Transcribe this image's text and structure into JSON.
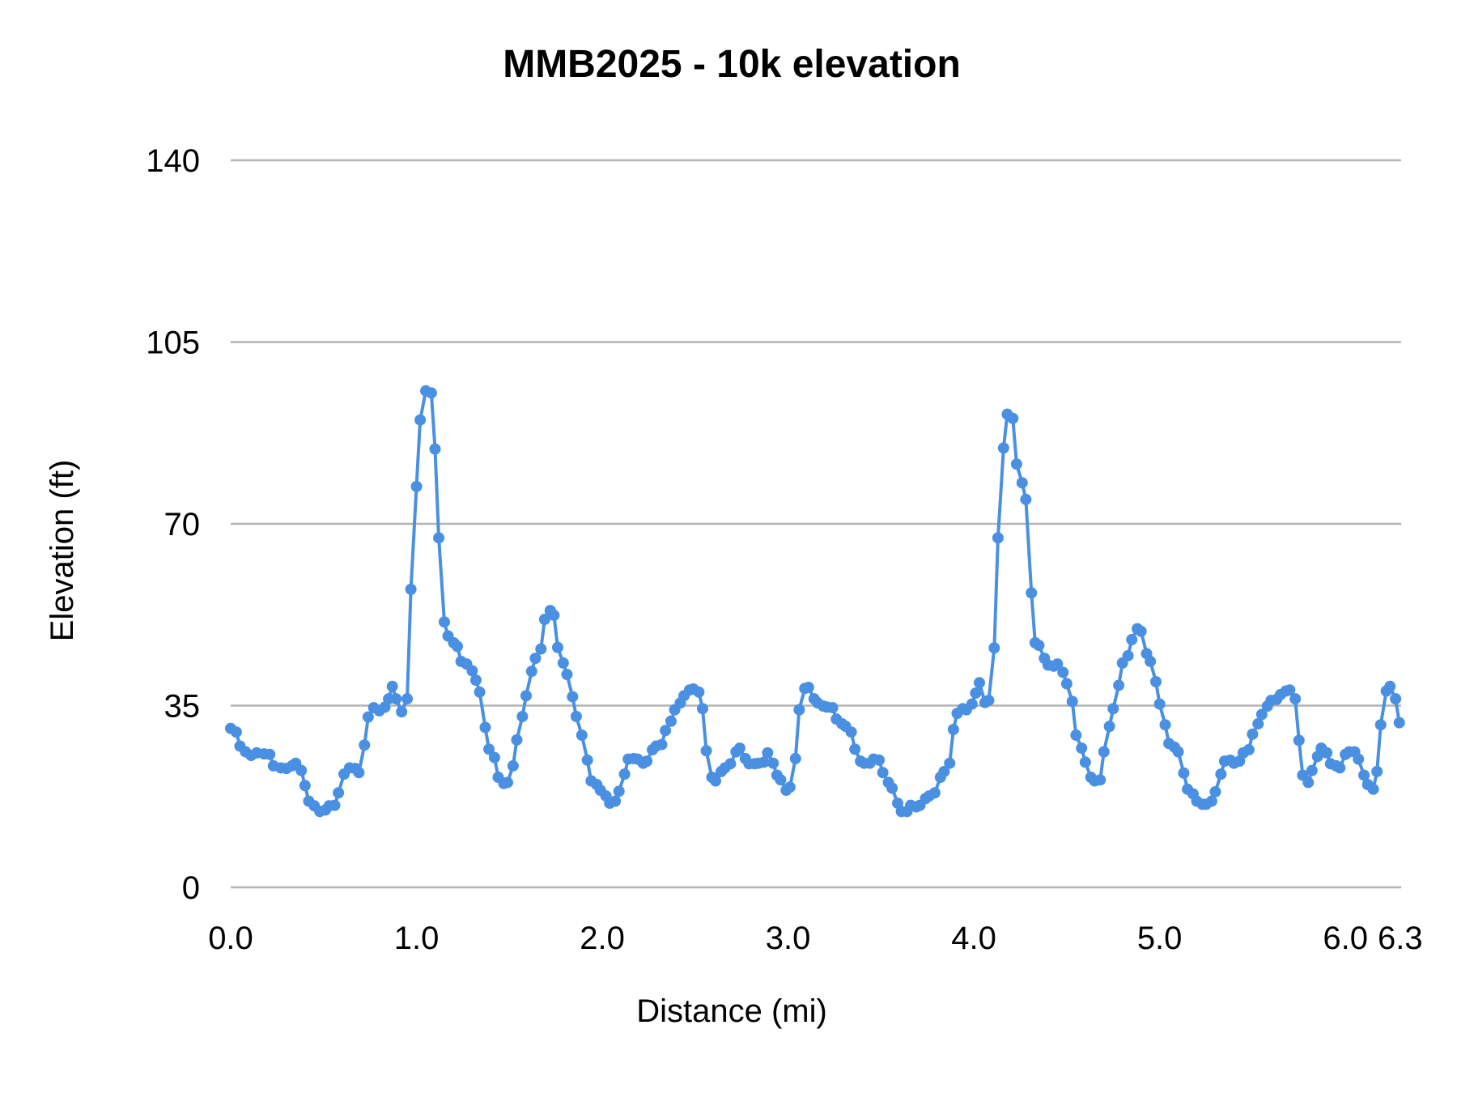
{
  "chart_data": {
    "type": "line",
    "title": "MMB2025 - 10k elevation",
    "xlabel": "Distance (mi)",
    "ylabel": "Elevation (ft)",
    "xlim": [
      0,
      6.3
    ],
    "ylim": [
      0,
      140
    ],
    "yticks": [
      0,
      35,
      70,
      105,
      140
    ],
    "ytick_labels": [
      "0",
      "35",
      "70",
      "105",
      "140"
    ],
    "xticks": [
      0,
      1,
      2,
      3,
      4,
      5,
      6,
      6.3
    ],
    "xtick_labels": [
      "0.0",
      "1.0",
      "2.0",
      "3.0",
      "4.0",
      "5.0",
      "6.0",
      "6.3"
    ],
    "grid": "horizontal",
    "legend": "none",
    "markers": true,
    "colors": {
      "series": "#4a90e2",
      "grid": "#b3b3b3"
    },
    "series": [
      {
        "x": [
          0.0,
          0.03,
          0.05,
          0.08,
          0.11,
          0.14,
          0.18,
          0.21,
          0.23,
          0.27,
          0.3,
          0.33,
          0.35,
          0.38,
          0.4,
          0.42,
          0.45,
          0.48,
          0.51,
          0.53,
          0.56,
          0.58,
          0.61,
          0.64,
          0.67,
          0.69,
          0.72,
          0.74,
          0.77,
          0.8,
          0.83,
          0.85,
          0.87,
          0.89,
          0.92,
          0.95,
          0.97,
          1.0,
          1.02,
          1.05,
          1.08,
          1.1,
          1.12,
          1.15,
          1.17,
          1.2,
          1.22,
          1.24,
          1.27,
          1.3,
          1.32,
          1.34,
          1.37,
          1.39,
          1.42,
          1.44,
          1.47,
          1.49,
          1.52,
          1.54,
          1.57,
          1.59,
          1.62,
          1.64,
          1.67,
          1.69,
          1.72,
          1.74,
          1.76,
          1.79,
          1.81,
          1.84,
          1.86,
          1.89,
          1.92,
          1.94,
          1.97,
          1.99,
          2.02,
          2.04,
          2.07,
          2.09,
          2.12,
          2.14,
          2.17,
          2.19,
          2.22,
          2.24,
          2.27,
          2.29,
          2.32,
          2.34,
          2.37,
          2.39,
          2.42,
          2.44,
          2.47,
          2.49,
          2.52,
          2.54,
          2.56,
          2.59,
          2.61,
          2.64,
          2.66,
          2.69,
          2.72,
          2.74,
          2.77,
          2.79,
          2.82,
          2.84,
          2.87,
          2.89,
          2.92,
          2.94,
          2.96,
          2.99,
          3.01,
          3.04,
          3.06,
          3.09,
          3.11,
          3.14,
          3.16,
          3.19,
          3.21,
          3.24,
          3.26,
          3.29,
          3.31,
          3.34,
          3.36,
          3.39,
          3.41,
          3.44,
          3.46,
          3.49,
          3.51,
          3.54,
          3.56,
          3.59,
          3.61,
          3.64,
          3.66,
          3.69,
          3.71,
          3.74,
          3.76,
          3.79,
          3.82,
          3.84,
          3.87,
          3.89,
          3.91,
          3.94,
          3.96,
          3.99,
          4.01,
          4.03,
          4.06,
          4.08,
          4.11,
          4.13,
          4.16,
          4.18,
          4.21,
          4.23,
          4.26,
          4.28,
          4.31,
          4.33,
          4.35,
          4.38,
          4.4,
          4.43,
          4.45,
          4.48,
          4.5,
          4.53,
          4.55,
          4.58,
          4.6,
          4.63,
          4.65,
          4.68,
          4.7,
          4.73,
          4.75,
          4.78,
          4.8,
          4.83,
          4.85,
          4.88,
          4.9,
          4.93,
          4.95,
          4.98,
          5.0,
          5.03,
          5.05,
          5.08,
          5.1,
          5.13,
          5.15,
          5.18,
          5.2,
          5.23,
          5.25,
          5.28,
          5.3,
          5.33,
          5.35,
          5.38,
          5.4,
          5.43,
          5.45,
          5.48,
          5.5,
          5.53,
          5.55,
          5.58,
          5.6,
          5.63,
          5.65,
          5.68,
          5.7,
          5.73,
          5.75,
          5.77,
          5.8,
          5.82,
          5.85,
          5.87,
          5.9,
          5.92,
          5.95,
          5.97,
          6.0,
          6.02,
          6.05,
          6.07,
          6.1,
          6.12,
          6.15,
          6.17,
          6.19,
          6.22,
          6.24,
          6.27,
          6.29
        ],
        "y": [
          30.6,
          29.9,
          27.2,
          26.1,
          25.4,
          25.9,
          25.7,
          25.6,
          23.4,
          23.0,
          22.9,
          23.4,
          23.9,
          22.5,
          19.6,
          16.6,
          15.7,
          14.6,
          14.9,
          15.7,
          15.8,
          18.2,
          21.8,
          23.0,
          22.9,
          22.1,
          27.4,
          32.8,
          34.6,
          34.0,
          34.7,
          36.3,
          38.7,
          36.3,
          33.8,
          36.3,
          57.4,
          77.2,
          90.0,
          95.6,
          95.2,
          84.4,
          67.3,
          51.1,
          48.4,
          47.1,
          46.4,
          43.5,
          43.0,
          41.7,
          39.9,
          37.6,
          30.8,
          26.6,
          25.0,
          21.2,
          20.0,
          20.2,
          23.4,
          28.4,
          32.9,
          36.9,
          41.6,
          44.1,
          45.9,
          51.6,
          53.3,
          52.4,
          46.2,
          43.2,
          41.0,
          36.7,
          32.9,
          29.3,
          24.5,
          20.5,
          19.8,
          18.7,
          17.6,
          16.2,
          16.6,
          18.5,
          21.8,
          24.7,
          24.8,
          24.7,
          23.9,
          24.3,
          26.5,
          27.2,
          27.5,
          30.2,
          32.0,
          34.2,
          35.5,
          36.9,
          38.0,
          38.2,
          37.6,
          34.4,
          26.3,
          21.2,
          20.5,
          22.3,
          23.0,
          23.8,
          26.1,
          26.8,
          24.8,
          23.8,
          23.8,
          23.9,
          24.1,
          25.9,
          23.9,
          21.6,
          20.7,
          18.7,
          19.3,
          24.8,
          34.2,
          38.3,
          38.5,
          36.3,
          35.5,
          34.9,
          34.7,
          34.6,
          32.4,
          31.5,
          31.0,
          29.9,
          26.6,
          24.3,
          23.9,
          23.9,
          24.7,
          24.5,
          22.1,
          20.2,
          19.1,
          16.2,
          14.6,
          14.6,
          15.8,
          15.5,
          15.8,
          17.1,
          17.6,
          18.2,
          21.2,
          22.3,
          23.9,
          30.4,
          33.5,
          34.4,
          34.2,
          35.3,
          37.4,
          39.4,
          35.6,
          36.0,
          46.1,
          67.3,
          84.6,
          91.1,
          90.3,
          81.5,
          77.9,
          74.7,
          56.7,
          47.1,
          46.6,
          44.1,
          42.8,
          42.6,
          43.0,
          41.4,
          39.2,
          35.8,
          29.3,
          26.8,
          24.1,
          21.2,
          20.5,
          20.7,
          26.1,
          31.0,
          34.4,
          38.9,
          43.2,
          44.6,
          47.7,
          49.8,
          49.3,
          45.0,
          43.5,
          39.6,
          35.3,
          31.3,
          27.7,
          27.0,
          26.1,
          22.0,
          18.9,
          18.0,
          16.6,
          16.0,
          16.0,
          16.6,
          18.4,
          21.8,
          24.3,
          24.5,
          23.9,
          24.3,
          25.9,
          26.5,
          29.5,
          31.5,
          33.3,
          34.9,
          36.0,
          36.2,
          37.1,
          37.8,
          38.0,
          36.3,
          28.3,
          21.6,
          20.2,
          22.5,
          25.2,
          26.8,
          25.9,
          23.8,
          23.4,
          23.0,
          25.6,
          26.1,
          26.1,
          24.7,
          21.6,
          19.8,
          18.9,
          22.3,
          31.3,
          37.8,
          38.7,
          36.3,
          31.7
        ]
      }
    ]
  }
}
